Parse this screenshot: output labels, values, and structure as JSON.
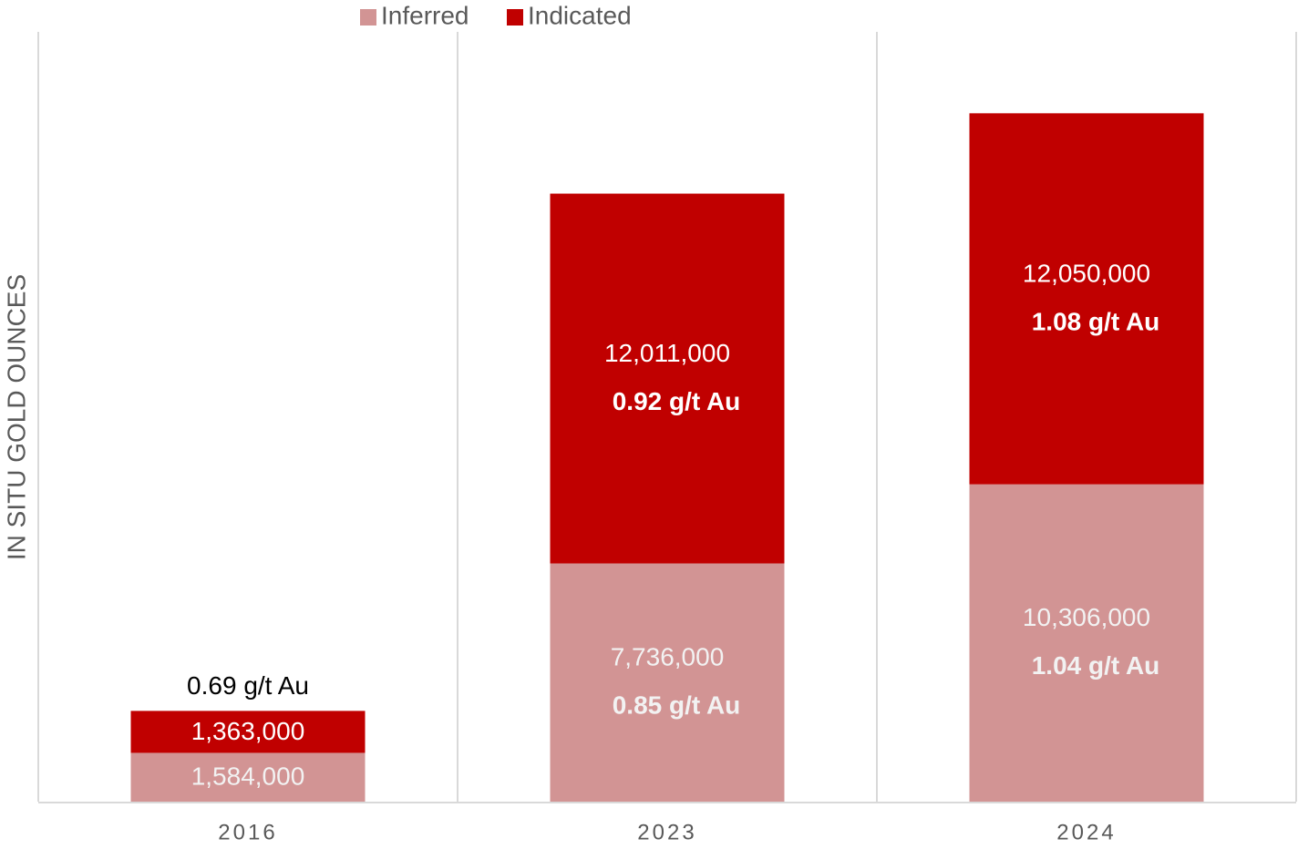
{
  "chart_data": {
    "type": "stacked_bar",
    "y_label": "IN SITU GOLD OUNCES",
    "categories": [
      "2016",
      "2023",
      "2024"
    ],
    "series": [
      {
        "name": "Inferred",
        "color": "#d29494",
        "values": [
          1584000,
          7736000,
          10306000
        ],
        "value_labels": [
          "1,584,000",
          "7,736,000",
          "10,306,000"
        ],
        "grade_labels": [
          null,
          "0.85 g/t Au",
          "1.04 g/t Au"
        ]
      },
      {
        "name": "Indicated",
        "color": "#c00000",
        "values": [
          1363000,
          12011000,
          12050000
        ],
        "value_labels": [
          "1,363,000",
          "12,011,000",
          "12,050,000"
        ],
        "grade_labels": [
          null,
          "0.92 g/t Au",
          "1.08 g/t Au"
        ]
      }
    ],
    "total_labels": [
      "0.69 g/t Au",
      null,
      null
    ],
    "ylim": [
      0,
      25000000
    ],
    "legend": "top"
  }
}
